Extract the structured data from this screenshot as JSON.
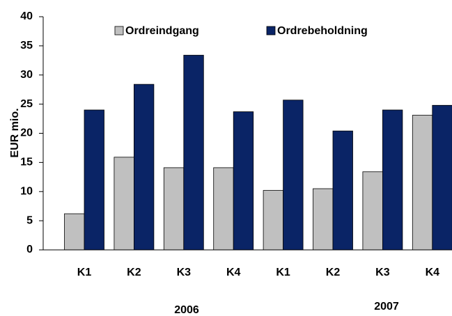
{
  "chart_data": {
    "type": "bar",
    "categories": [
      "K1",
      "K2",
      "K3",
      "K4",
      "K1",
      "K2",
      "K3",
      "K4"
    ],
    "group_labels": [
      "2006",
      "2007"
    ],
    "series": [
      {
        "name": "Ordreindgang",
        "color": "#c0c0c0",
        "values": [
          6.2,
          15.9,
          14.1,
          14.1,
          10.2,
          10.5,
          13.4,
          23.1
        ]
      },
      {
        "name": "Ordrebeholdning",
        "color": "#0a2466",
        "values": [
          24.0,
          28.4,
          33.4,
          23.7,
          25.7,
          20.4,
          24.0,
          24.8
        ]
      }
    ],
    "y_label": "EUR mio.",
    "ylim": [
      0,
      40
    ],
    "yticks": [
      0,
      5,
      10,
      15,
      20,
      25,
      30,
      35,
      40
    ]
  }
}
